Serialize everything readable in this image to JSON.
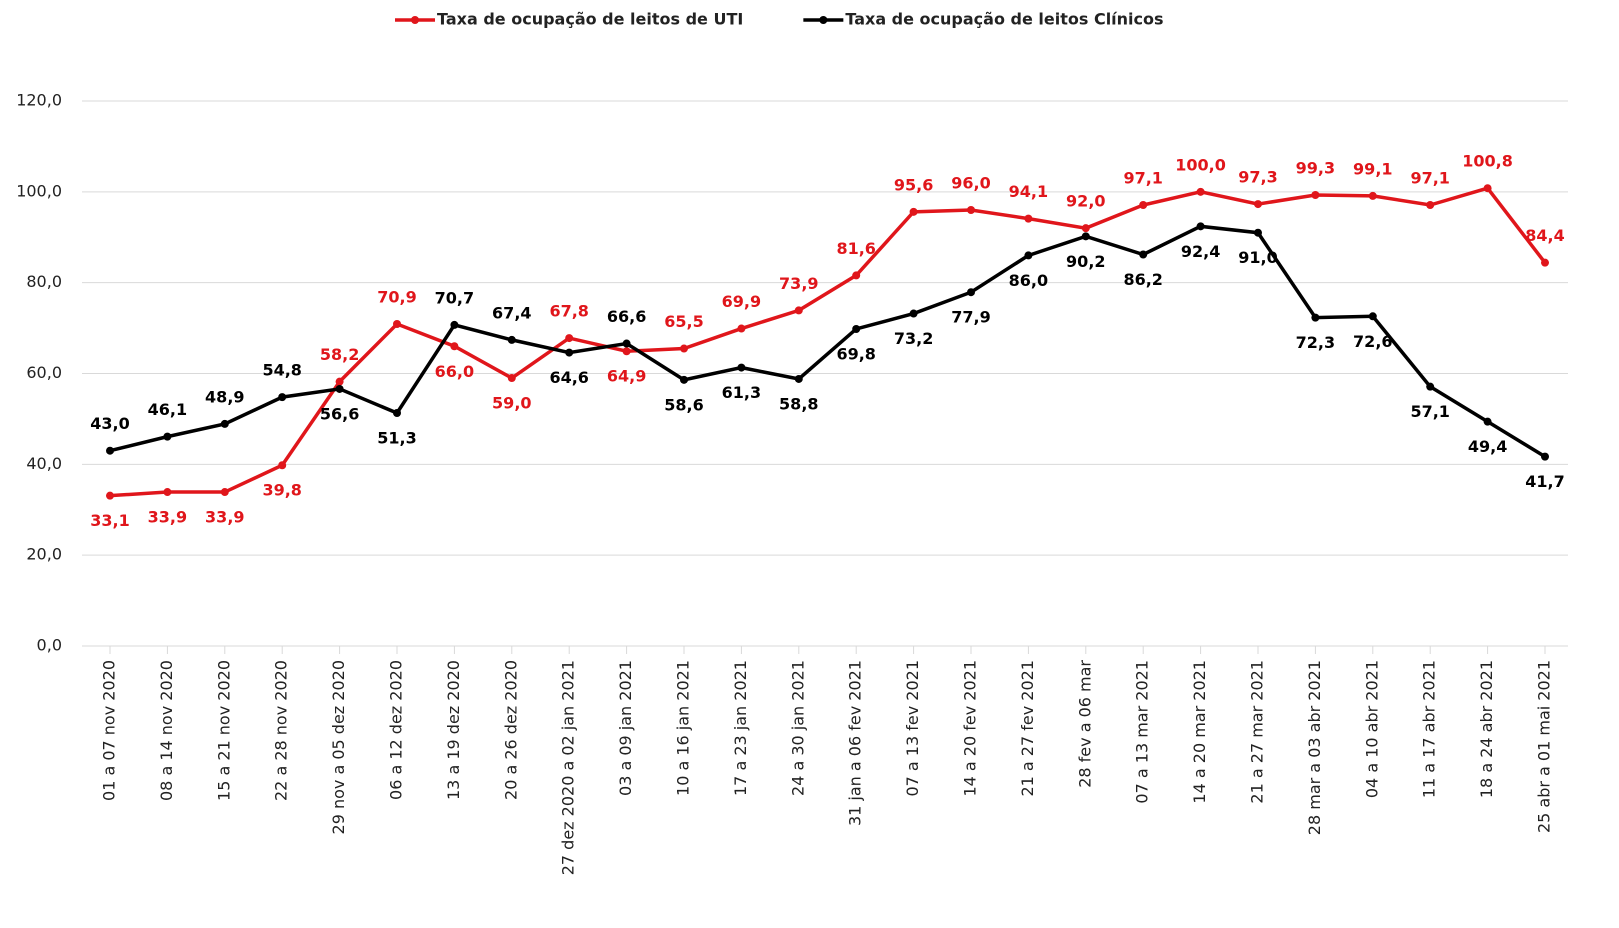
{
  "chart_data": {
    "type": "line",
    "categories": [
      "01 a 07 nov 2020",
      "08 a 14 nov 2020",
      "15 a 21 nov 2020",
      "22 a 28 nov 2020",
      "29 nov a 05 dez 2020",
      "06 a 12 dez 2020",
      "13 a 19 dez 2020",
      "20 a 26 dez 2020",
      "27 dez 2020 a 02 jan 2021",
      "03 a 09 jan 2021",
      "10 a 16 jan 2021",
      "17 a 23 jan 2021",
      "24 a 30 jan 2021",
      "31 jan a 06 fev 2021",
      "07 a 13 fev 2021",
      "14 a 20 fev 2021",
      "21 a 27 fev 2021",
      "28 fev a 06 mar",
      "07 a 13 mar 2021",
      "14 a 20 mar 2021",
      "21 a 27 mar 2021",
      "28 mar a 03 abr 2021",
      "04 a 10 abr 2021",
      "11 a 17 abr 2021",
      "18 a 24 abr 2021",
      "25 abr a 01 mai 2021"
    ],
    "series": [
      {
        "name": "Taxa de ocupação de leitos de UTI",
        "color": "#e0161b",
        "values": [
          33.1,
          33.9,
          33.9,
          39.8,
          58.2,
          70.9,
          66.0,
          59.0,
          67.8,
          64.9,
          65.5,
          69.9,
          73.9,
          81.6,
          95.6,
          96.0,
          94.1,
          92.0,
          97.1,
          100.0,
          97.3,
          99.3,
          99.1,
          97.1,
          100.8,
          84.4
        ],
        "value_labels": [
          "33,1",
          "33,9",
          "33,9",
          "39,8",
          "58,2",
          "70,9",
          "66,0",
          "59,0",
          "67,8",
          "64,9",
          "65,5",
          "69,9",
          "73,9",
          "81,6",
          "95,6",
          "96,0",
          "94,1",
          "92,0",
          "97,1",
          "100,0",
          "97,3",
          "99,3",
          "99,1",
          "97,1",
          "100,8",
          "84,4"
        ]
      },
      {
        "name": "Taxa de ocupação de leitos Clínicos",
        "color": "#000000",
        "values": [
          43.0,
          46.1,
          48.9,
          54.8,
          56.6,
          51.3,
          70.7,
          67.4,
          64.6,
          66.6,
          58.6,
          61.3,
          58.8,
          69.8,
          73.2,
          77.9,
          86.0,
          90.2,
          86.2,
          92.4,
          91.0,
          72.3,
          72.6,
          57.1,
          49.4,
          41.7
        ],
        "value_labels": [
          "43,0",
          "46,1",
          "48,9",
          "54,8",
          "56,6",
          "51,3",
          "70,7",
          "67,4",
          "64,6",
          "66,6",
          "58,6",
          "61,3",
          "58,8",
          "69,8",
          "73,2",
          "77,9",
          "86,0",
          "90,2",
          "86,2",
          "92,4",
          "91,0",
          "72,3",
          "72,6",
          "57,1",
          "49,4",
          "41,7"
        ]
      }
    ],
    "ylim": [
      0,
      120
    ],
    "yticks": [
      {
        "value": 0,
        "label": "0,0"
      },
      {
        "value": 20,
        "label": "20,0"
      },
      {
        "value": 40,
        "label": "40,0"
      },
      {
        "value": 60,
        "label": "60,0"
      },
      {
        "value": 80,
        "label": "80,0"
      },
      {
        "value": 100,
        "label": "100,0"
      },
      {
        "value": 120,
        "label": "120,0"
      }
    ],
    "grid": true,
    "legend": "top"
  }
}
